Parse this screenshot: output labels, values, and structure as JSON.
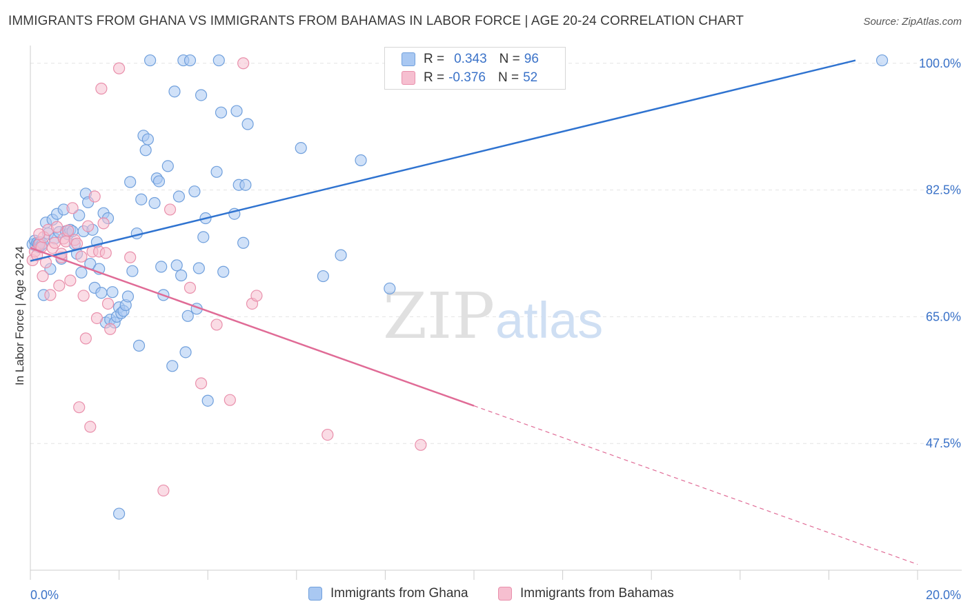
{
  "header": {
    "title": "IMMIGRANTS FROM GHANA VS IMMIGRANTS FROM BAHAMAS IN LABOR FORCE | AGE 20-24 CORRELATION CHART",
    "source": "Source: ZipAtlas.com"
  },
  "watermark": {
    "zip": "ZIP",
    "atlas": "atlas"
  },
  "legend": {
    "r_label": "R =",
    "n_label": "N =",
    "rows": [
      {
        "r": "0.343",
        "n": "96"
      },
      {
        "r": "-0.376",
        "n": "52"
      }
    ]
  },
  "colors": {
    "ghana_fill": "#a9c8f2",
    "ghana_stroke": "#6f9fdc",
    "ghana_line": "#2f73d0",
    "bahamas_fill": "#f6bfd0",
    "bahamas_stroke": "#e98fab",
    "bahamas_line": "#e06b96",
    "axis_label": "#3a72c8",
    "grid": "#e3e3e3"
  },
  "chart_data": {
    "type": "scatter",
    "title": "IMMIGRANTS FROM GHANA VS IMMIGRANTS FROM BAHAMAS IN LABOR FORCE | AGE 20-24 CORRELATION CHART",
    "xlabel": "",
    "ylabel": "In Labor Force | Age 20-24",
    "xlim": [
      0,
      20
    ],
    "ylim": [
      30,
      101.5
    ],
    "x_tick_labels": [
      "0.0%",
      "20.0%"
    ],
    "y_ticks": [
      47.5,
      65.0,
      82.5,
      100.0
    ],
    "y_tick_labels": [
      "47.5%",
      "65.0%",
      "82.5%",
      "100.0%"
    ],
    "grid": true,
    "legend_position": "top-center",
    "series": [
      {
        "name": "Immigrants from Ghana",
        "r": 0.343,
        "n": 96,
        "trend": {
          "x": [
            0,
            18.6
          ],
          "y": [
            72.7,
            100.4
          ]
        },
        "points": [
          [
            0.05,
            75.0
          ],
          [
            0.1,
            75.5
          ],
          [
            0.12,
            74.8
          ],
          [
            0.15,
            75.2
          ],
          [
            0.18,
            75.0
          ],
          [
            0.2,
            74.6
          ],
          [
            0.22,
            75.3
          ],
          [
            0.25,
            74.9
          ],
          [
            0.28,
            75.1
          ],
          [
            0.3,
            68.0
          ],
          [
            0.35,
            78.0
          ],
          [
            0.4,
            76.5
          ],
          [
            0.45,
            71.6
          ],
          [
            0.5,
            78.4
          ],
          [
            0.55,
            75.8
          ],
          [
            0.6,
            79.2
          ],
          [
            0.65,
            76.7
          ],
          [
            0.7,
            73.0
          ],
          [
            0.75,
            79.8
          ],
          [
            0.8,
            76.8
          ],
          [
            0.85,
            76.4
          ],
          [
            0.9,
            77.0
          ],
          [
            0.95,
            76.8
          ],
          [
            1.0,
            75.0
          ],
          [
            1.05,
            73.7
          ],
          [
            1.1,
            79.0
          ],
          [
            1.15,
            71.1
          ],
          [
            1.2,
            76.8
          ],
          [
            1.25,
            82.0
          ],
          [
            1.3,
            80.8
          ],
          [
            1.35,
            72.3
          ],
          [
            1.4,
            77.0
          ],
          [
            1.45,
            69.0
          ],
          [
            1.5,
            75.3
          ],
          [
            1.55,
            71.6
          ],
          [
            1.6,
            68.3
          ],
          [
            1.65,
            79.3
          ],
          [
            1.7,
            64.2
          ],
          [
            1.75,
            78.6
          ],
          [
            1.8,
            64.6
          ],
          [
            1.85,
            68.4
          ],
          [
            1.9,
            64.2
          ],
          [
            1.95,
            65.0
          ],
          [
            2.0,
            66.3
          ],
          [
            2.05,
            65.5
          ],
          [
            2.1,
            65.8
          ],
          [
            2.15,
            66.6
          ],
          [
            2.2,
            67.8
          ],
          [
            2.25,
            83.6
          ],
          [
            2.3,
            71.3
          ],
          [
            2.4,
            76.5
          ],
          [
            2.45,
            61.0
          ],
          [
            2.5,
            81.2
          ],
          [
            2.55,
            90.0
          ],
          [
            2.6,
            88.0
          ],
          [
            2.65,
            89.5
          ],
          [
            2.7,
            100.4
          ],
          [
            2.8,
            80.7
          ],
          [
            2.85,
            84.1
          ],
          [
            2.9,
            83.7
          ],
          [
            2.95,
            71.9
          ],
          [
            3.0,
            68.0
          ],
          [
            3.1,
            85.8
          ],
          [
            3.2,
            58.2
          ],
          [
            3.25,
            96.1
          ],
          [
            3.3,
            72.1
          ],
          [
            3.35,
            81.6
          ],
          [
            3.4,
            70.7
          ],
          [
            3.45,
            100.4
          ],
          [
            3.5,
            60.1
          ],
          [
            3.55,
            65.1
          ],
          [
            3.6,
            100.4
          ],
          [
            3.7,
            82.3
          ],
          [
            3.75,
            66.1
          ],
          [
            3.8,
            71.7
          ],
          [
            3.85,
            95.6
          ],
          [
            3.9,
            76.0
          ],
          [
            3.95,
            78.6
          ],
          [
            4.0,
            53.4
          ],
          [
            4.2,
            85.0
          ],
          [
            4.25,
            100.4
          ],
          [
            4.3,
            93.2
          ],
          [
            4.35,
            71.2
          ],
          [
            4.6,
            79.2
          ],
          [
            4.65,
            93.4
          ],
          [
            4.7,
            83.2
          ],
          [
            4.8,
            75.2
          ],
          [
            4.85,
            83.2
          ],
          [
            4.9,
            91.6
          ],
          [
            6.1,
            88.3
          ],
          [
            6.6,
            70.6
          ],
          [
            7.0,
            73.5
          ],
          [
            7.45,
            86.6
          ],
          [
            8.1,
            68.9
          ],
          [
            2.0,
            37.8
          ],
          [
            19.2,
            100.4
          ]
        ]
      },
      {
        "name": "Immigrants from Bahamas",
        "r": -0.376,
        "n": 52,
        "trend": {
          "x": [
            0,
            10.0
          ],
          "y": [
            74.5,
            52.7
          ]
        },
        "trend_dashed": {
          "x": [
            10.0,
            20.0
          ],
          "y": [
            52.7,
            30.8
          ]
        },
        "points": [
          [
            0.05,
            72.8
          ],
          [
            0.1,
            74.0
          ],
          [
            0.15,
            73.5
          ],
          [
            0.2,
            75.0
          ],
          [
            0.25,
            74.6
          ],
          [
            0.28,
            70.6
          ],
          [
            0.3,
            76.0
          ],
          [
            0.35,
            72.5
          ],
          [
            0.4,
            77.0
          ],
          [
            0.45,
            68.0
          ],
          [
            0.5,
            74.5
          ],
          [
            0.55,
            75.2
          ],
          [
            0.6,
            77.4
          ],
          [
            0.65,
            69.3
          ],
          [
            0.7,
            73.2
          ],
          [
            0.75,
            75.8
          ],
          [
            0.8,
            75.4
          ],
          [
            0.85,
            76.9
          ],
          [
            0.9,
            70.0
          ],
          [
            0.95,
            80.0
          ],
          [
            1.0,
            75.6
          ],
          [
            1.05,
            75.1
          ],
          [
            1.1,
            52.5
          ],
          [
            1.15,
            73.3
          ],
          [
            1.2,
            67.9
          ],
          [
            1.25,
            62.0
          ],
          [
            1.3,
            77.5
          ],
          [
            1.35,
            49.8
          ],
          [
            1.4,
            74.0
          ],
          [
            1.45,
            81.6
          ],
          [
            1.5,
            64.8
          ],
          [
            1.55,
            74.0
          ],
          [
            1.6,
            96.5
          ],
          [
            1.65,
            77.9
          ],
          [
            1.7,
            73.8
          ],
          [
            1.75,
            66.8
          ],
          [
            1.8,
            63.3
          ],
          [
            2.0,
            99.3
          ],
          [
            2.25,
            73.2
          ],
          [
            3.0,
            41.0
          ],
          [
            3.15,
            79.8
          ],
          [
            3.6,
            69.0
          ],
          [
            3.85,
            55.8
          ],
          [
            4.2,
            63.9
          ],
          [
            4.5,
            53.5
          ],
          [
            4.8,
            100.0
          ],
          [
            5.0,
            66.8
          ],
          [
            5.1,
            67.9
          ],
          [
            6.7,
            48.7
          ],
          [
            8.8,
            47.3
          ],
          [
            0.2,
            76.4
          ],
          [
            0.7,
            73.7
          ]
        ]
      }
    ]
  },
  "bottom_legend": {
    "items": [
      "Immigrants from Ghana",
      "Immigrants from Bahamas"
    ]
  }
}
